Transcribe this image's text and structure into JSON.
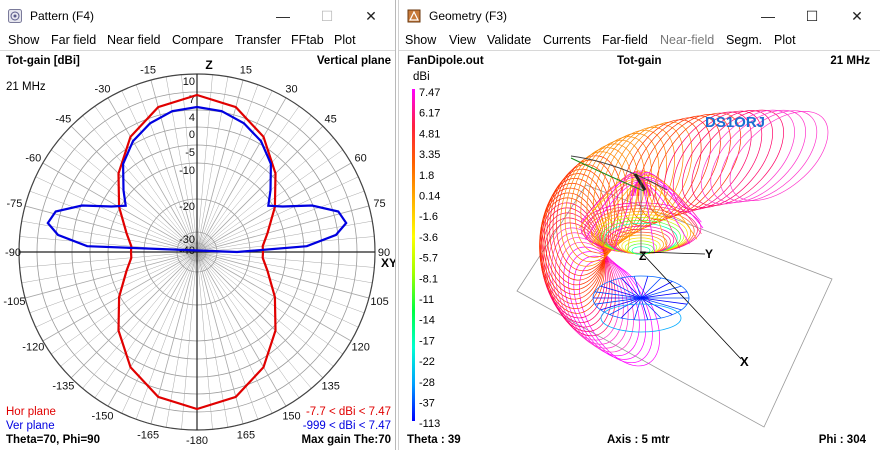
{
  "pattern_window": {
    "title": "Pattern     (F4)",
    "menu": [
      "Show",
      "Far field",
      "Near field",
      "Compare",
      "Transfer",
      "FFtab",
      "Plot"
    ],
    "top_left": "Tot-gain [dBi]",
    "top_right": "Vertical plane",
    "frequency": "21 MHz",
    "axis_z": "Z",
    "axis_xy": "XY",
    "radial_labels": [
      "10",
      "7",
      "4",
      "0",
      "-5",
      "-10",
      "-20",
      "-30",
      "-40"
    ],
    "angle_labels": [
      "-15",
      "15",
      "-30",
      "30",
      "-45",
      "45",
      "-60",
      "60",
      "-75",
      "75",
      "-90",
      "90",
      "-105",
      "105",
      "-120",
      "120",
      "-135",
      "135",
      "-150",
      "150",
      "-165",
      "165",
      "-180"
    ],
    "legend_hor": "Hor plane",
    "legend_ver": "Ver plane",
    "range_hor": "-7.7 < dBi < 7.47",
    "range_ver": "-999 < dBi < 7.47",
    "footer_left": "Theta=70, Phi=90",
    "footer_right": "Max gain The:70",
    "colors": {
      "hor": "#e00000",
      "ver": "#0000e0"
    }
  },
  "geometry_window": {
    "title": "Geometry     (F3)",
    "menu": [
      "Show",
      "View",
      "Validate",
      "Currents",
      "Far-field",
      "Near-field",
      "Segm.",
      "Plot"
    ],
    "file": "FanDipole.out",
    "mode": "Tot-gain",
    "frequency": "21 MHz",
    "unit": "dBi",
    "scale": [
      "7.47",
      "6.17",
      "4.81",
      "3.35",
      "1.8",
      "0.14",
      "-1.6",
      "-3.6",
      "-5.7",
      "-8.1",
      "-11",
      "-14",
      "-17",
      "-22",
      "-28",
      "-37",
      "-113"
    ],
    "callsign": "DS1ORJ",
    "axis_z": "Z",
    "axis_y": "Y",
    "axis_x": "X",
    "footer_left": "Theta : 39",
    "footer_mid": "Axis : 5 mtr",
    "footer_right": "Phi : 304",
    "colors": {
      "callsign": "#1a6fd1"
    }
  }
}
